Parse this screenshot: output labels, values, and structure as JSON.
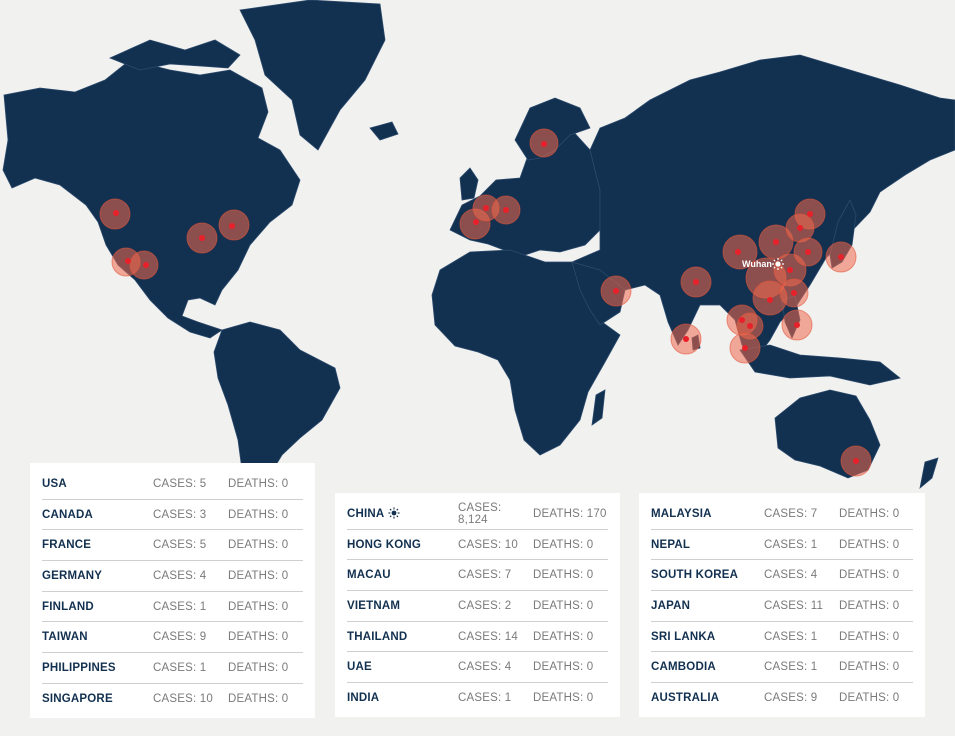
{
  "map": {
    "hotspot_label": "Wuhan",
    "colors": {
      "land": "#12304f",
      "ocean": "#f1f1f0",
      "halo": "#f06a4f",
      "core": "#e8202a"
    }
  },
  "tables": [
    {
      "rows": [
        {
          "country": "USA",
          "cases": "CASES: 5",
          "deaths": "DEATHS: 0"
        },
        {
          "country": "CANADA",
          "cases": "CASES: 3",
          "deaths": "DEATHS: 0"
        },
        {
          "country": "FRANCE",
          "cases": "CASES: 5",
          "deaths": "DEATHS: 0"
        },
        {
          "country": "GERMANY",
          "cases": "CASES: 4",
          "deaths": "DEATHS: 0"
        },
        {
          "country": "FINLAND",
          "cases": "CASES: 1",
          "deaths": "DEATHS: 0"
        },
        {
          "country": "TAIWAN",
          "cases": "CASES: 9",
          "deaths": "DEATHS: 0"
        },
        {
          "country": "PHILIPPINES",
          "cases": "CASES: 1",
          "deaths": "DEATHS: 0"
        },
        {
          "country": "SINGAPORE",
          "cases": "CASES: 10",
          "deaths": "DEATHS: 0"
        }
      ]
    },
    {
      "rows": [
        {
          "country": "CHINA",
          "cases": "CASES: 8,124",
          "deaths": "DEATHS: 170",
          "icon": "virus-icon"
        },
        {
          "country": "HONG KONG",
          "cases": "CASES: 10",
          "deaths": "DEATHS: 0"
        },
        {
          "country": "MACAU",
          "cases": "CASES: 7",
          "deaths": "DEATHS: 0"
        },
        {
          "country": "VIETNAM",
          "cases": "CASES: 2",
          "deaths": "DEATHS: 0"
        },
        {
          "country": "THAILAND",
          "cases": "CASES: 14",
          "deaths": "DEATHS: 0"
        },
        {
          "country": "UAE",
          "cases": "CASES: 4",
          "deaths": "DEATHS: 0"
        },
        {
          "country": "INDIA",
          "cases": "CASES: 1",
          "deaths": "DEATHS: 0"
        }
      ]
    },
    {
      "rows": [
        {
          "country": "MALAYSIA",
          "cases": "CASES: 7",
          "deaths": "DEATHS: 0"
        },
        {
          "country": "NEPAL",
          "cases": "CASES: 1",
          "deaths": "DEATHS: 0"
        },
        {
          "country": "SOUTH KOREA",
          "cases": "CASES: 4",
          "deaths": "DEATHS: 0"
        },
        {
          "country": "JAPAN",
          "cases": "CASES: 11",
          "deaths": "DEATHS: 0"
        },
        {
          "country": "SRI LANKA",
          "cases": "CASES: 1",
          "deaths": "DEATHS: 0"
        },
        {
          "country": "CAMBODIA",
          "cases": "CASES: 1",
          "deaths": "DEATHS: 0"
        },
        {
          "country": "AUSTRALIA",
          "cases": "CASES: 9",
          "deaths": "DEATHS: 0"
        }
      ]
    }
  ]
}
